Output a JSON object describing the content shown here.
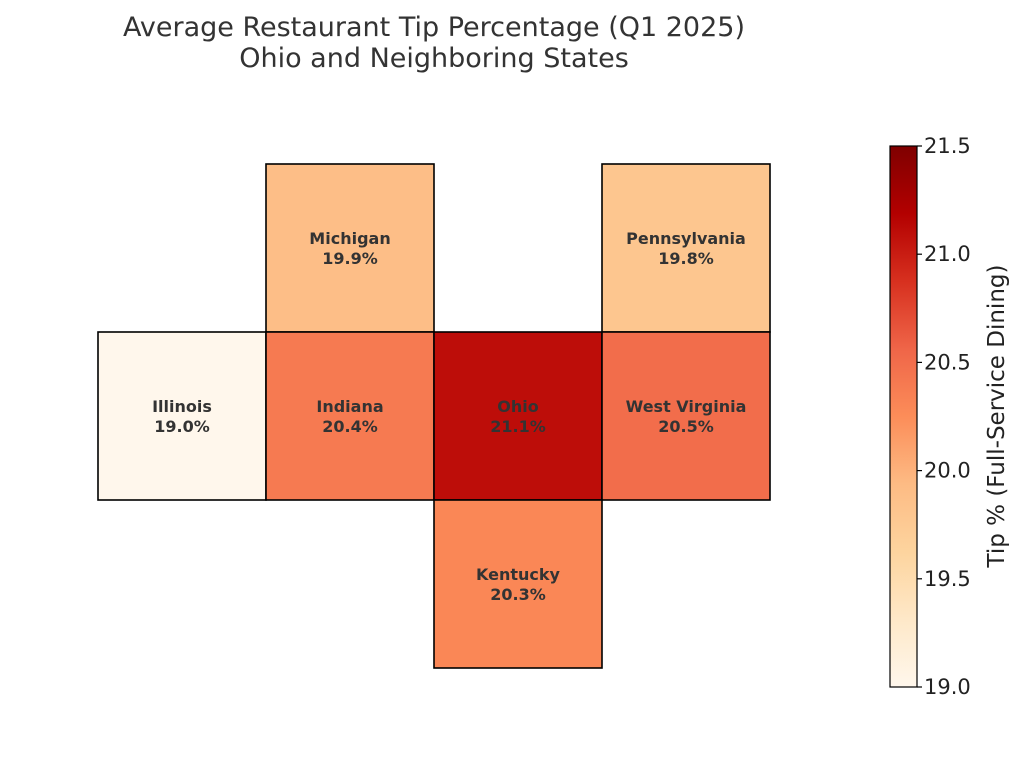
{
  "chart_data": {
    "type": "heatmap",
    "title": "Average Restaurant Tip Percentage (Q1 2025)",
    "subtitle": "Ohio and Neighboring States",
    "grid": false,
    "cells": [
      {
        "state": "Michigan",
        "label": "19.9%",
        "value": 19.9,
        "row": 0,
        "col": 1
      },
      {
        "state": "Pennsylvania",
        "label": "19.8%",
        "value": 19.8,
        "row": 0,
        "col": 3
      },
      {
        "state": "Illinois",
        "label": "19.0%",
        "value": 19.0,
        "row": 1,
        "col": 0
      },
      {
        "state": "Indiana",
        "label": "20.4%",
        "value": 20.4,
        "row": 1,
        "col": 1
      },
      {
        "state": "Ohio",
        "label": "21.1%",
        "value": 21.1,
        "row": 1,
        "col": 2
      },
      {
        "state": "West Virginia",
        "label": "20.5%",
        "value": 20.5,
        "row": 1,
        "col": 3
      },
      {
        "state": "Kentucky",
        "label": "20.3%",
        "value": 20.3,
        "row": 2,
        "col": 2
      }
    ],
    "colorbar": {
      "label": "Tip % (Full-Service Dining)",
      "range": [
        19.0,
        21.5
      ],
      "ticks": [
        "19.0",
        "19.5",
        "20.0",
        "20.5",
        "21.0",
        "21.5"
      ],
      "colormap": [
        "#fff7ec",
        "#fee8c8",
        "#fdd49e",
        "#fdbb84",
        "#fc8d59",
        "#ef6548",
        "#d7301f",
        "#b30000",
        "#7f0000"
      ]
    }
  }
}
